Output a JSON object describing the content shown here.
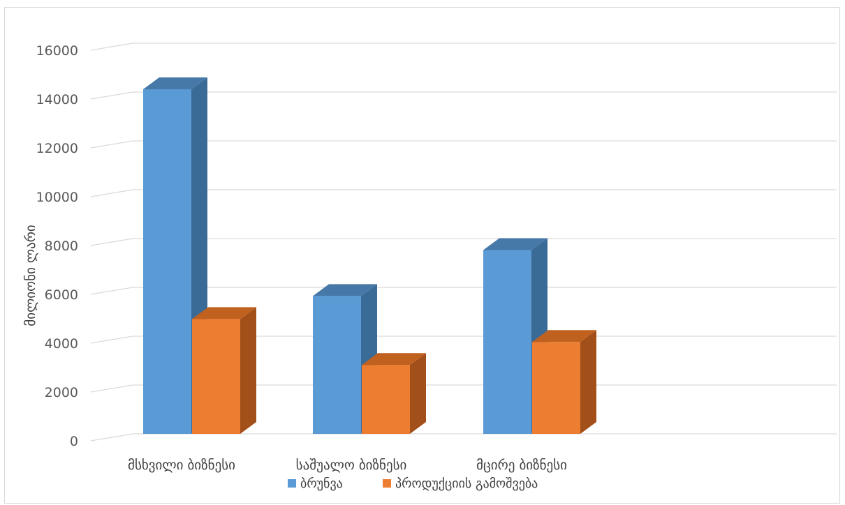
{
  "chart_data": {
    "type": "bar",
    "subtype": "3d-clustered-column",
    "categories": [
      "მსხვილი ბიზნესი",
      "საშუალო ბიზნესი",
      "მცირე ბიზნესი"
    ],
    "series": [
      {
        "name": "ბრუნვა",
        "values": [
          15000,
          6000,
          8000
        ],
        "color": "#5b9bd5",
        "side_color": "#3a6a96",
        "top_color": "#4678a8"
      },
      {
        "name": "პროდუქციის გამოშვება",
        "values": [
          5000,
          3000,
          4000
        ],
        "color": "#ed7d31",
        "side_color": "#a34f1a",
        "top_color": "#c0611f"
      }
    ],
    "title": "",
    "xlabel": "",
    "ylabel": "მილიონი ლარი",
    "ylim": [
      0,
      16000
    ],
    "yticks": [
      0,
      2000,
      4000,
      6000,
      8000,
      10000,
      12000,
      14000,
      16000
    ],
    "grid": true,
    "legend_position": "bottom",
    "grid_color": "#d9d9d9"
  }
}
